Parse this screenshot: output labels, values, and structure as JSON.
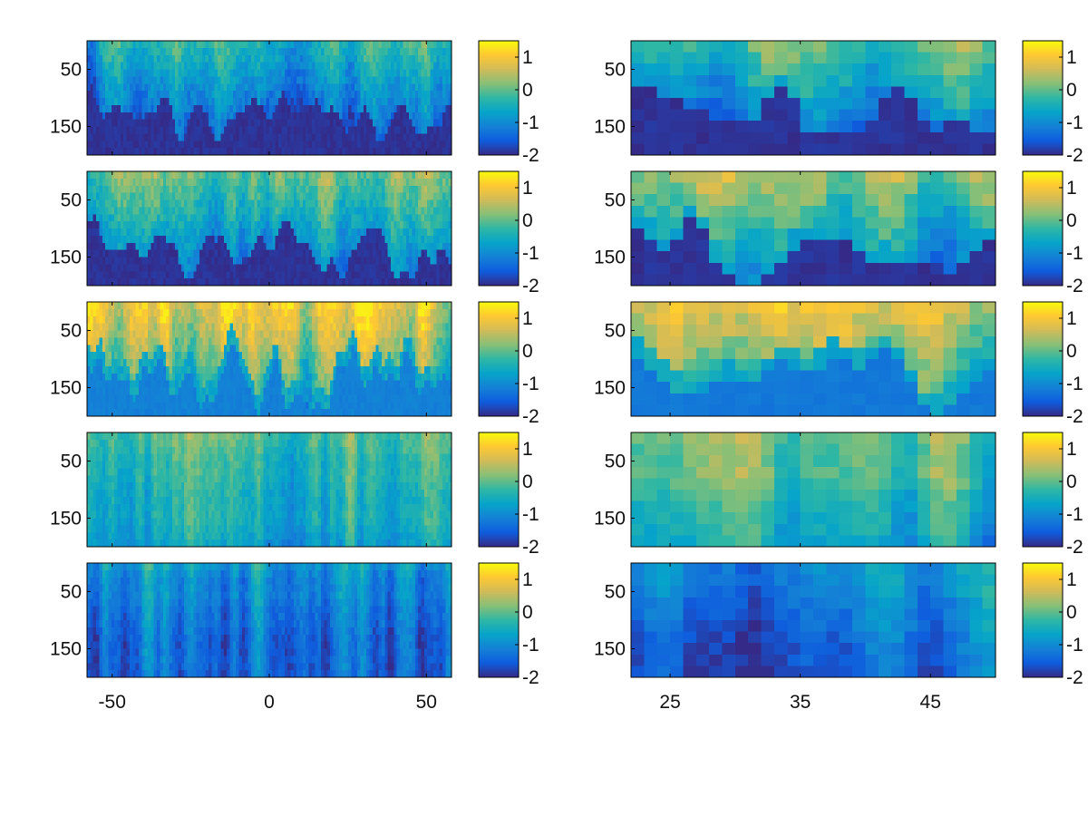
{
  "chart_data": {
    "type": "heatmap",
    "layout": "5 rows x 2 columns of heatmap panels, each with its own colorbar",
    "colormap": "parula",
    "colorbar": {
      "range": [
        -2,
        1.5
      ],
      "tick_labels": [
        "1",
        "0",
        "-1",
        "-2"
      ]
    },
    "colors": {
      "parula": [
        "#352A87",
        "#0F5CDD",
        "#1481D6",
        "#06A4CA",
        "#2EB7A4",
        "#87BF77",
        "#D1BB59",
        "#FEC832",
        "#F9FB0E"
      ],
      "axis": "#000000",
      "background": "#FFFFFF"
    },
    "columns": [
      {
        "x_range": [
          -58,
          58
        ],
        "y_range": [
          0,
          200
        ],
        "y_reversed": true,
        "x_ticks": [
          -50,
          0,
          50
        ],
        "x_tick_labels": [
          "-50",
          "0",
          "50"
        ],
        "y_ticks": [
          50,
          150
        ],
        "y_tick_labels": [
          "50",
          "150"
        ],
        "panels": [
          {
            "style": "pos",
            "seed": 11,
            "ns": 5,
            "intensity": 0.15,
            "base": -2.0
          },
          {
            "style": "pos",
            "seed": 12,
            "ns": 5,
            "intensity": 0.45,
            "base": -2.0
          },
          {
            "style": "pos",
            "seed": 13,
            "ns": 3,
            "intensity": 0.95,
            "base": -1.2
          },
          {
            "style": "full",
            "seed": 14,
            "ns": 2,
            "intensity": 0.7,
            "base": -0.1
          },
          {
            "style": "full",
            "seed": 15,
            "ns": 2,
            "intensity": 0.5,
            "base": -0.9
          }
        ]
      },
      {
        "x_range": [
          22,
          50
        ],
        "y_range": [
          0,
          200
        ],
        "y_reversed": true,
        "x_ticks": [
          25,
          35,
          45
        ],
        "x_tick_labels": [
          "25",
          "35",
          "45"
        ],
        "y_ticks": [
          50,
          150
        ],
        "y_tick_labels": [
          "50",
          "150"
        ],
        "panels": [
          {
            "style": "pos",
            "seed": 21,
            "ns": 2,
            "intensity": 0.35,
            "base": -2.0
          },
          {
            "style": "pos",
            "seed": 22,
            "ns": 2,
            "intensity": 0.55,
            "base": -2.0
          },
          {
            "style": "pos",
            "seed": 23,
            "ns": 2,
            "intensity": 0.95,
            "base": -1.3
          },
          {
            "style": "full",
            "seed": 24,
            "ns": 2,
            "intensity": 0.75,
            "base": 0.1
          },
          {
            "style": "full",
            "seed": 25,
            "ns": 2,
            "intensity": 0.45,
            "base": -1.0
          }
        ]
      }
    ]
  }
}
